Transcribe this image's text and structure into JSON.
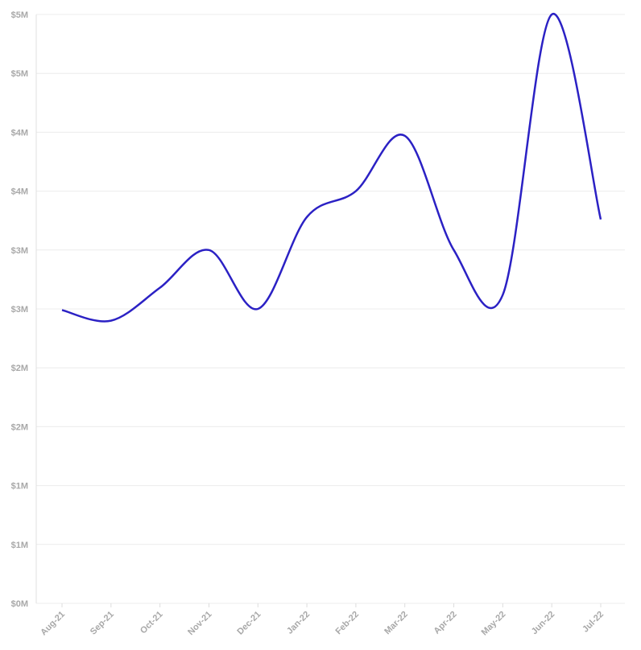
{
  "chart_data": {
    "type": "line",
    "categories": [
      "Aug-21",
      "Sep-21",
      "Oct-21",
      "Nov-21",
      "Dec-21",
      "Jan-22",
      "Feb-22",
      "Mar-22",
      "Apr-22",
      "May-22",
      "Jun-22",
      "Jul-22"
    ],
    "series": [
      {
        "color": "#2b21c4",
        "values": [
          2490000,
          2400000,
          2680000,
          3000000,
          2500000,
          3280000,
          3500000,
          3970000,
          3000000,
          2620000,
          5000000,
          3260000
        ]
      }
    ],
    "ylim": [
      0,
      5000000
    ],
    "yticks": [
      {
        "value": 0,
        "label": "$0M"
      },
      {
        "value": 500000,
        "label": "$1M"
      },
      {
        "value": 1000000,
        "label": "$1M"
      },
      {
        "value": 1500000,
        "label": "$2M"
      },
      {
        "value": 2000000,
        "label": "$2M"
      },
      {
        "value": 2500000,
        "label": "$3M"
      },
      {
        "value": 3000000,
        "label": "$3M"
      },
      {
        "value": 3500000,
        "label": "$4M"
      },
      {
        "value": 4000000,
        "label": "$4M"
      },
      {
        "value": 4500000,
        "label": "$5M"
      },
      {
        "value": 5000000,
        "label": "$5M"
      }
    ],
    "grid": true
  }
}
